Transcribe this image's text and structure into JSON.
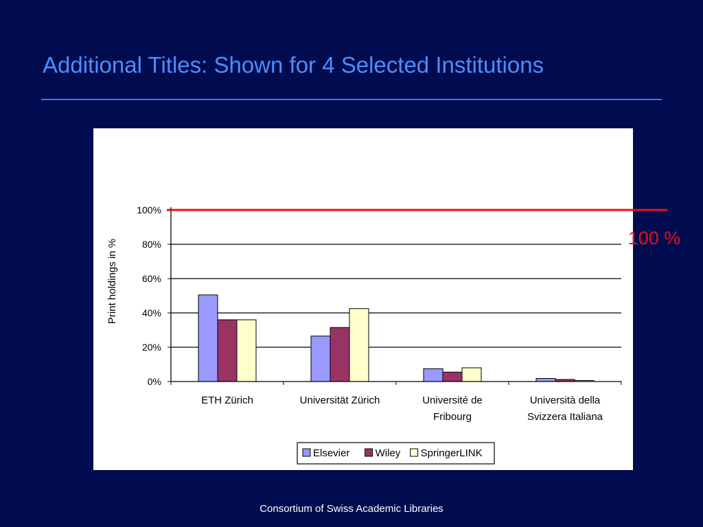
{
  "slide": {
    "title": "Additional Titles: Shown for 4 Selected Institutions",
    "footer": "Consortium of Swiss Academic Libraries"
  },
  "colors": {
    "background": "#000c4f",
    "title": "#4d8dff",
    "reference_line": "#e8101a",
    "plot_area": "#ffffff"
  },
  "chart_data": {
    "type": "bar",
    "title": "",
    "xlabel": "",
    "ylabel": "Print holdings in %",
    "ylim": [
      0,
      100
    ],
    "yticks": [
      0,
      20,
      40,
      60,
      80,
      100
    ],
    "ytick_labels": [
      "0%",
      "20%",
      "40%",
      "60%",
      "80%",
      "100%"
    ],
    "grid": true,
    "legend_position": "bottom",
    "categories": [
      [
        "ETH Zürich"
      ],
      [
        "Universität Zürich"
      ],
      [
        "Université de",
        "Fribourg"
      ],
      [
        "Università della",
        "Svizzera Italiana"
      ]
    ],
    "series": [
      {
        "name": "Elsevier",
        "color": "#9999ff",
        "values": [
          50.5,
          26.5,
          7.5,
          1.8
        ]
      },
      {
        "name": "Wiley",
        "color": "#993366",
        "values": [
          36,
          31.5,
          5.5,
          1.2
        ]
      },
      {
        "name": "SpringerLINK",
        "color": "#ffffcc",
        "values": [
          36,
          42.5,
          8,
          0.6
        ]
      }
    ],
    "reference_line": {
      "value": 100,
      "label": "100 %"
    }
  }
}
